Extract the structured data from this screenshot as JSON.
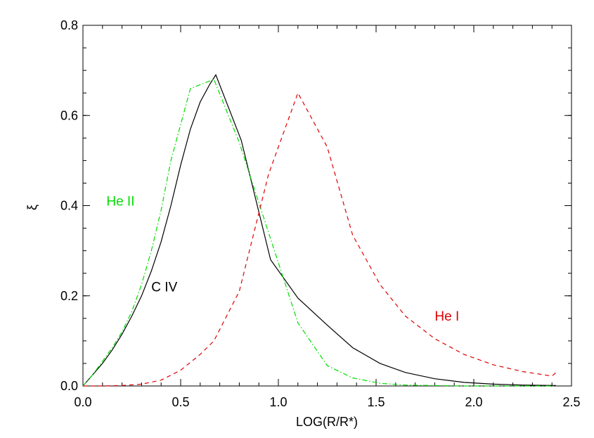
{
  "chart_data": {
    "type": "line",
    "xlabel": "LOG(R/R*)",
    "ylabel": "ξ",
    "xlim": [
      0.0,
      2.5
    ],
    "ylim": [
      0.0,
      0.8
    ],
    "x_ticks": [
      "0.0",
      "0.5",
      "1.0",
      "1.5",
      "2.0",
      "2.5"
    ],
    "y_ticks": [
      "0.0",
      "0.2",
      "0.4",
      "0.6",
      "0.8"
    ],
    "grid": false,
    "legend": "none",
    "series": [
      {
        "name": "C IV",
        "color": "#000000",
        "style": "solid",
        "label_at": [
          0.35,
          0.21
        ],
        "x": [
          0.0,
          0.05,
          0.1,
          0.15,
          0.2,
          0.25,
          0.3,
          0.35,
          0.4,
          0.45,
          0.5,
          0.55,
          0.6,
          0.65,
          0.68,
          0.81,
          0.96,
          1.1,
          1.25,
          1.38,
          1.52,
          1.65,
          1.8,
          1.95,
          2.1,
          2.25,
          2.42
        ],
        "y": [
          0.0,
          0.025,
          0.05,
          0.08,
          0.115,
          0.155,
          0.2,
          0.255,
          0.32,
          0.4,
          0.49,
          0.57,
          0.63,
          0.67,
          0.69,
          0.545,
          0.28,
          0.195,
          0.135,
          0.085,
          0.05,
          0.03,
          0.016,
          0.008,
          0.004,
          0.002,
          0.001
        ]
      },
      {
        "name": "He II",
        "color": "#00dd00",
        "style": "dashdot",
        "label_at": [
          0.12,
          0.4
        ],
        "x": [
          0.0,
          0.05,
          0.1,
          0.15,
          0.2,
          0.25,
          0.3,
          0.35,
          0.4,
          0.45,
          0.55,
          0.67,
          0.8,
          0.95,
          1.1,
          1.25,
          1.38,
          1.52,
          1.65,
          1.8,
          1.95,
          2.1,
          2.25,
          2.42
        ],
        "y": [
          0.0,
          0.025,
          0.055,
          0.085,
          0.12,
          0.165,
          0.225,
          0.3,
          0.39,
          0.5,
          0.66,
          0.68,
          0.54,
          0.34,
          0.14,
          0.045,
          0.018,
          0.006,
          0.002,
          0.001,
          0.0,
          0.0,
          0.0,
          0.0
        ]
      },
      {
        "name": "He I",
        "color": "#dd0000",
        "style": "dashed",
        "label_at": [
          1.8,
          0.145
        ],
        "x": [
          0.0,
          0.1,
          0.2,
          0.3,
          0.4,
          0.5,
          0.6,
          0.67,
          0.8,
          0.95,
          1.1,
          1.25,
          1.38,
          1.52,
          1.65,
          1.8,
          1.95,
          2.1,
          2.25,
          2.4,
          2.43
        ],
        "y": [
          0.0,
          0.0,
          0.001,
          0.004,
          0.013,
          0.035,
          0.07,
          0.1,
          0.21,
          0.47,
          0.65,
          0.53,
          0.335,
          0.225,
          0.155,
          0.105,
          0.07,
          0.047,
          0.032,
          0.022,
          0.033
        ]
      }
    ]
  }
}
